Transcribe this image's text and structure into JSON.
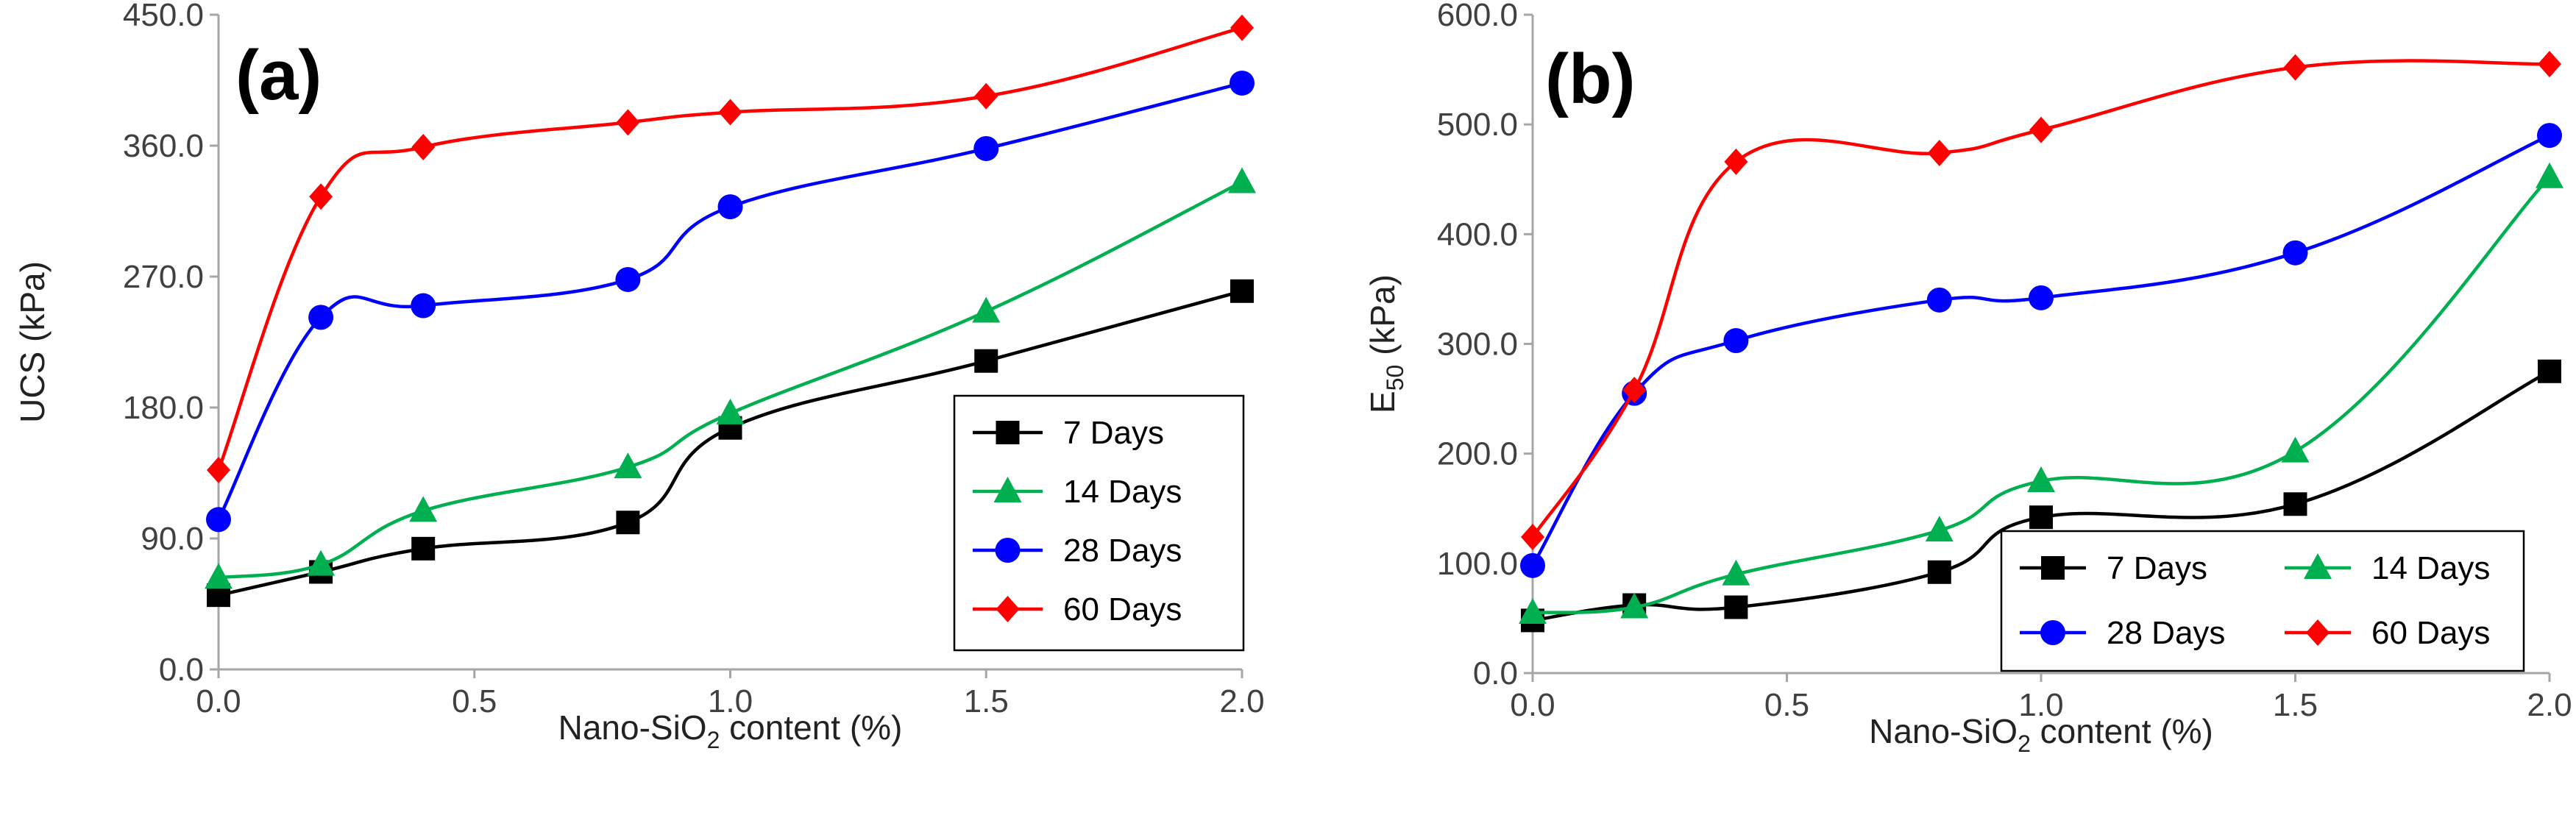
{
  "chart_data": [
    {
      "type": "line",
      "panel_label": "(a)",
      "xlabel": {
        "pre": "Nano-SiO",
        "sub": "2",
        "post": " content (%)"
      },
      "ylabel": {
        "pre": "UCS (kPa)",
        "sub": "",
        "post": ""
      },
      "x": [
        0.0,
        0.2,
        0.4,
        0.8,
        1.0,
        1.5,
        2.0
      ],
      "xlim": [
        0,
        2
      ],
      "ylim": [
        0,
        450
      ],
      "xticks": [
        0,
        0.5,
        1,
        1.5,
        2
      ],
      "yticks": [
        0,
        90,
        180,
        270,
        360,
        450
      ],
      "xtick_labels": [
        "0.0",
        "0.5",
        "1.0",
        "1.5",
        "2.0"
      ],
      "ytick_labels": [
        "0.0",
        "90.0",
        "180.0",
        "270.0",
        "360.0",
        "450.0"
      ],
      "legend_position": "bottom-right",
      "legend_columns": 1,
      "series": [
        {
          "name": "7 Days",
          "color": "#000000",
          "marker": "square",
          "values": [
            51,
            67,
            83,
            101,
            166,
            212,
            260
          ]
        },
        {
          "name": "14 Days",
          "color": "#00b050",
          "marker": "triangle",
          "values": [
            63,
            72,
            109,
            139,
            176,
            246,
            335
          ]
        },
        {
          "name": "28 Days",
          "color": "#0000ff",
          "marker": "circle",
          "values": [
            103,
            242,
            250,
            268,
            318,
            358,
            403
          ]
        },
        {
          "name": "60 Days",
          "color": "#ff0000",
          "marker": "diamond",
          "values": [
            137,
            325,
            359,
            376,
            383,
            394,
            441
          ]
        }
      ]
    },
    {
      "type": "line",
      "panel_label": "(b)",
      "xlabel": {
        "pre": "Nano-SiO",
        "sub": "2",
        "post": " content (%)"
      },
      "ylabel": {
        "pre": "E",
        "sub": "50",
        "post": " (kPa)"
      },
      "x": [
        0.0,
        0.2,
        0.4,
        0.8,
        1.0,
        1.5,
        2.0
      ],
      "xlim": [
        0,
        2
      ],
      "ylim": [
        0,
        600
      ],
      "xticks": [
        0,
        0.5,
        1,
        1.5,
        2
      ],
      "yticks": [
        0,
        100,
        200,
        300,
        400,
        500,
        600
      ],
      "xtick_labels": [
        "0.0",
        "0.5",
        "1.0",
        "1.5",
        "2.0"
      ],
      "ytick_labels": [
        "0.0",
        "100.0",
        "200.0",
        "300.0",
        "400.0",
        "500.0",
        "600.0"
      ],
      "legend_position": "bottom-right",
      "legend_columns": 2,
      "series": [
        {
          "name": "7 Days",
          "color": "#000000",
          "marker": "square",
          "values": [
            48,
            62,
            60,
            92,
            142,
            154,
            275
          ]
        },
        {
          "name": "14 Days",
          "color": "#00b050",
          "marker": "triangle",
          "values": [
            55,
            60,
            90,
            130,
            175,
            202,
            452
          ]
        },
        {
          "name": "28 Days",
          "color": "#0000ff",
          "marker": "circle",
          "values": [
            98,
            255,
            303,
            340,
            342,
            383,
            490
          ]
        },
        {
          "name": "60 Days",
          "color": "#ff0000",
          "marker": "diamond",
          "values": [
            124,
            258,
            466,
            474,
            495,
            552,
            555
          ]
        }
      ]
    }
  ]
}
